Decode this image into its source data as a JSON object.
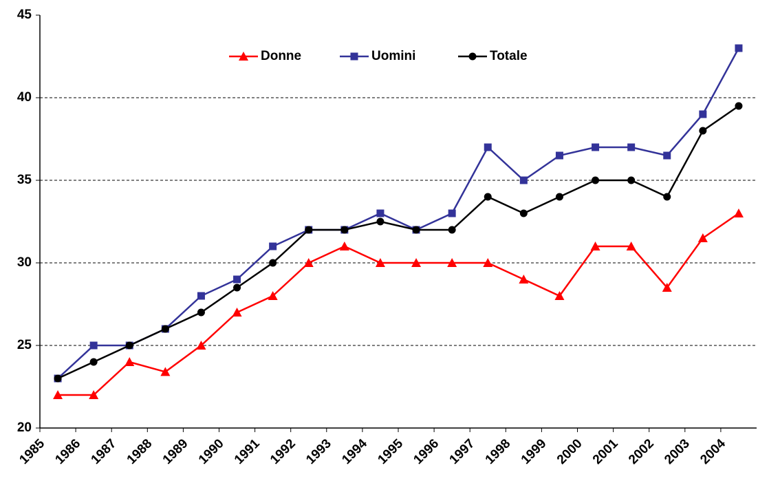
{
  "chart_data": {
    "type": "line",
    "categories": [
      "1985",
      "1986",
      "1987",
      "1988",
      "1989",
      "1990",
      "1991",
      "1992",
      "1993",
      "1994",
      "1995",
      "1996",
      "1997",
      "1998",
      "1999",
      "2000",
      "2001",
      "2002",
      "2003",
      "2004"
    ],
    "series": [
      {
        "name": "Donne",
        "color": "#ff0000",
        "marker": "triangle",
        "values": [
          22,
          22,
          24,
          23.4,
          25,
          27,
          28,
          30,
          31,
          30,
          30,
          30,
          30,
          29,
          28,
          31,
          31,
          28.5,
          31.5,
          33
        ]
      },
      {
        "name": "Uomini",
        "color": "#333399",
        "marker": "square",
        "values": [
          23,
          25,
          25,
          26,
          28,
          29,
          31,
          32,
          32,
          33,
          32,
          33,
          37,
          35,
          36.5,
          37,
          37,
          36.5,
          39,
          43
        ]
      },
      {
        "name": "Totale",
        "color": "#000000",
        "marker": "circle",
        "values": [
          23,
          24,
          25,
          26,
          27,
          28.5,
          30,
          32,
          32,
          32.5,
          32,
          32,
          34,
          33,
          34,
          35,
          35,
          34,
          38,
          39.5
        ]
      }
    ],
    "ylim": [
      20,
      45
    ],
    "yticks": [
      20,
      25,
      30,
      35,
      40,
      45
    ],
    "grid": true,
    "legend": "top"
  }
}
